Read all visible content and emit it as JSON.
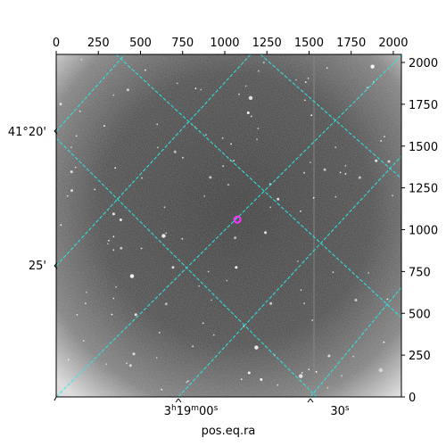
{
  "figure": {
    "xlabel": "pos.eq.ra",
    "top_ticks": [
      "0",
      "250",
      "500",
      "750",
      "1000",
      "1250",
      "1500",
      "1750",
      "2000"
    ],
    "right_ticks": [
      "0",
      "250",
      "500",
      "750",
      "1000",
      "1250",
      "1500",
      "1750",
      "2000"
    ],
    "dec_labels": {
      "upper": "41°20'",
      "lower": "25'"
    },
    "ra_labels": {
      "main_prefix": "3",
      "main_h": "h",
      "main_mid": "19",
      "main_m": "m",
      "main_sec": "00",
      "main_s": "s",
      "second": "30",
      "second_s": "s"
    },
    "grid_color": "#2ee6e6",
    "marker_color": "#ff33ff",
    "pixel_range": [
      0,
      2048
    ],
    "marked_source": {
      "x": 1075,
      "y": 1060
    }
  }
}
